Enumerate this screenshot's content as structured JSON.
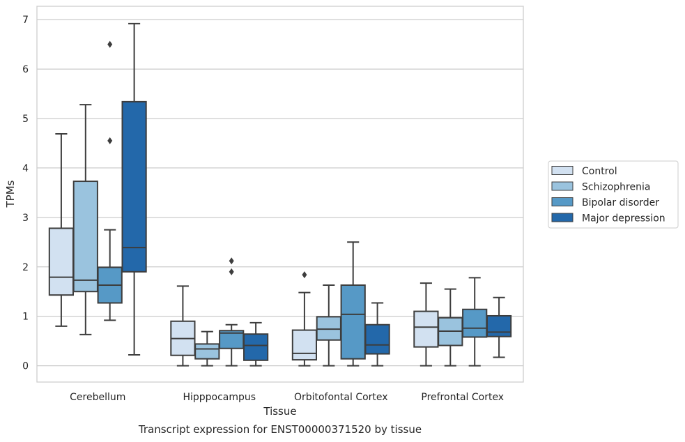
{
  "chart_data": {
    "type": "box",
    "title": "",
    "caption": "Transcript expression for ENST00000371520 by tissue",
    "xlabel": "Tissue",
    "ylabel": "TPMs",
    "ylim": [
      -0.33,
      7.27
    ],
    "yticks": [
      0,
      1,
      2,
      3,
      4,
      5,
      6,
      7
    ],
    "grid": "horizontal",
    "legend_position": "right",
    "categories": [
      "Cerebellum",
      "Hipppocampus",
      "Orbitofontal Cortex",
      "Prefrontal Cortex"
    ],
    "series": [
      {
        "name": "Control",
        "color": "#d2e1f1",
        "boxes": [
          {
            "whisker_low": 0.8,
            "q1": 1.43,
            "median": 1.79,
            "q3": 2.78,
            "whisker_high": 4.69,
            "outliers": []
          },
          {
            "whisker_low": 0.0,
            "q1": 0.21,
            "median": 0.55,
            "q3": 0.9,
            "whisker_high": 1.61,
            "outliers": []
          },
          {
            "whisker_low": 0.0,
            "q1": 0.12,
            "median": 0.25,
            "q3": 0.72,
            "whisker_high": 1.48,
            "outliers": [
              1.84
            ]
          },
          {
            "whisker_low": 0.0,
            "q1": 0.38,
            "median": 0.78,
            "q3": 1.1,
            "whisker_high": 1.67,
            "outliers": []
          }
        ]
      },
      {
        "name": "Schizophrenia",
        "color": "#9ac3de",
        "boxes": [
          {
            "whisker_low": 0.63,
            "q1": 1.5,
            "median": 1.73,
            "q3": 3.73,
            "whisker_high": 5.28,
            "outliers": []
          },
          {
            "whisker_low": 0.0,
            "q1": 0.14,
            "median": 0.34,
            "q3": 0.44,
            "whisker_high": 0.69,
            "outliers": []
          },
          {
            "whisker_low": 0.0,
            "q1": 0.52,
            "median": 0.74,
            "q3": 0.99,
            "whisker_high": 1.63,
            "outliers": []
          },
          {
            "whisker_low": 0.0,
            "q1": 0.41,
            "median": 0.7,
            "q3": 0.97,
            "whisker_high": 1.55,
            "outliers": []
          }
        ]
      },
      {
        "name": "Bipolar disorder",
        "color": "#5699c6",
        "boxes": [
          {
            "whisker_low": 0.92,
            "q1": 1.27,
            "median": 1.63,
            "q3": 1.99,
            "whisker_high": 2.75,
            "outliers": [
              4.55,
              6.5
            ]
          },
          {
            "whisker_low": 0.0,
            "q1": 0.35,
            "median": 0.66,
            "q3": 0.71,
            "whisker_high": 0.83,
            "outliers": [
              1.9,
              2.12
            ]
          },
          {
            "whisker_low": 0.0,
            "q1": 0.14,
            "median": 1.04,
            "q3": 1.63,
            "whisker_high": 2.5,
            "outliers": []
          },
          {
            "whisker_low": 0.0,
            "q1": 0.58,
            "median": 0.76,
            "q3": 1.14,
            "whisker_high": 1.78,
            "outliers": []
          }
        ]
      },
      {
        "name": "Major depression",
        "color": "#2368aa",
        "boxes": [
          {
            "whisker_low": 0.22,
            "q1": 1.9,
            "median": 2.39,
            "q3": 5.34,
            "whisker_high": 6.92,
            "outliers": []
          },
          {
            "whisker_low": 0.0,
            "q1": 0.11,
            "median": 0.41,
            "q3": 0.64,
            "whisker_high": 0.87,
            "outliers": []
          },
          {
            "whisker_low": 0.0,
            "q1": 0.24,
            "median": 0.42,
            "q3": 0.83,
            "whisker_high": 1.27,
            "outliers": []
          },
          {
            "whisker_low": 0.17,
            "q1": 0.59,
            "median": 0.68,
            "q3": 1.01,
            "whisker_high": 1.38,
            "outliers": []
          }
        ]
      }
    ]
  }
}
